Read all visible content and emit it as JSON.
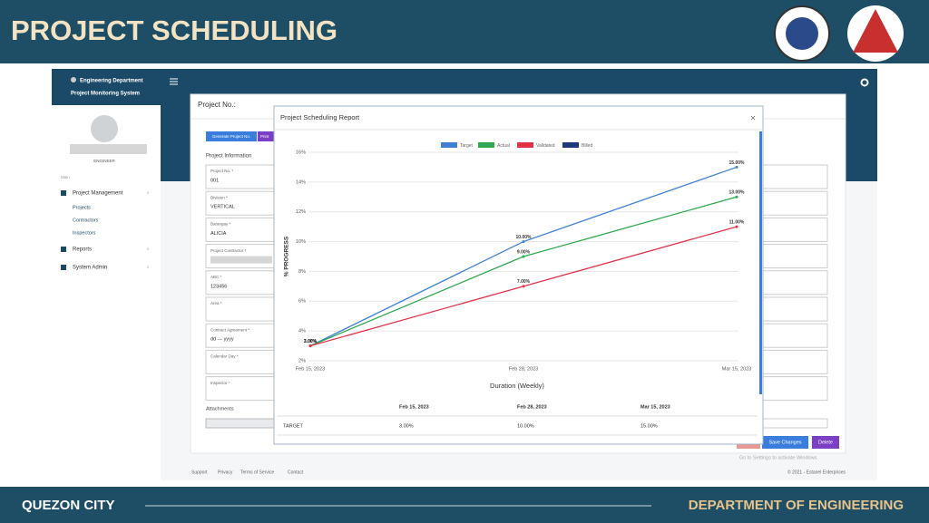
{
  "header": {
    "title": "PROJECT SCHEDULING"
  },
  "footer_banner": {
    "left": "QUEZON CITY",
    "right": "DEPARTMENT OF ENGINEERING"
  },
  "app": {
    "sidebar": {
      "brand": "Engineering Department",
      "system": "Project Monitoring System",
      "role": "ENGINEER",
      "section": "Main",
      "menu": [
        "Project Management",
        "Projects",
        "Contractors",
        "Inspectors",
        "Reports",
        "System Admin"
      ]
    },
    "form": {
      "heading": "Project No.:",
      "buttons": [
        "Generate Project No.",
        "Print"
      ],
      "section": "Project Information",
      "fields": [
        {
          "label": "Project No. *",
          "value": "001"
        },
        {
          "label": "Division *",
          "value": "VERTICAL"
        },
        {
          "label": "Barangay *",
          "value": "ALICIA"
        },
        {
          "label": "Project Contractor *"
        },
        {
          "label": "ABC *",
          "value": "123456"
        },
        {
          "label": "Area *"
        },
        {
          "label": "Contract Agreement *",
          "value": "dd --- yyyy"
        },
        {
          "label": "Calendar Day *"
        },
        {
          "label": "Inspector *"
        }
      ],
      "attachments": "Attachments",
      "actions": [
        "Save Changes",
        "Delete"
      ]
    },
    "footer": {
      "links": [
        "Support",
        "Privacy",
        "Terms of Service",
        "Contact"
      ],
      "copyright": "© 2021 - Estanel Enterprises",
      "watermark": "Go to Settings to activate Windows."
    }
  },
  "modal": {
    "title": "Project Scheduling Report",
    "table": {
      "header": [
        "Feb 15, 2023",
        "Feb 28, 2023",
        "Mar 15, 2023"
      ],
      "rows": [
        {
          "label": "TARGET",
          "cells": [
            "3.00%",
            "10.00%",
            "15.00%"
          ]
        }
      ]
    }
  },
  "chart_data": {
    "type": "line",
    "x_label": "Duration (Weekly)",
    "y_label": "% PROGRESS",
    "categories": [
      "Feb 15, 2023",
      "Feb 28, 2023",
      "Mar 15, 2023"
    ],
    "series": [
      {
        "name": "Target",
        "color": "#3f7fd6",
        "values": [
          3,
          10,
          15
        ],
        "value_labels": [
          "3.00%",
          "10.00%",
          "15.00%"
        ]
      },
      {
        "name": "Actual",
        "color": "#2fa84f",
        "values": [
          3,
          9,
          13
        ],
        "value_labels": [
          "3.00%",
          "9.00%",
          "13.00%"
        ]
      },
      {
        "name": "Validated",
        "color": "#e0334a",
        "values": [
          3,
          7,
          11
        ],
        "value_labels": [
          "3.00%",
          "7.00%",
          "11.00%"
        ]
      },
      {
        "name": "Billed",
        "color": "#1f3a7a",
        "values": [
          null,
          null,
          null
        ]
      }
    ],
    "ylim": [
      2,
      16
    ],
    "yticks": [
      {
        "value": 2,
        "label": "2%"
      },
      {
        "value": 4,
        "label": "4%"
      },
      {
        "value": 6,
        "label": "6%"
      },
      {
        "value": 8,
        "label": "8%"
      },
      {
        "value": 10,
        "label": "10%"
      },
      {
        "value": 12,
        "label": "12%"
      },
      {
        "value": 14,
        "label": "14%"
      },
      {
        "value": 16,
        "label": "16%"
      }
    ],
    "grid": true,
    "legend": "top"
  }
}
